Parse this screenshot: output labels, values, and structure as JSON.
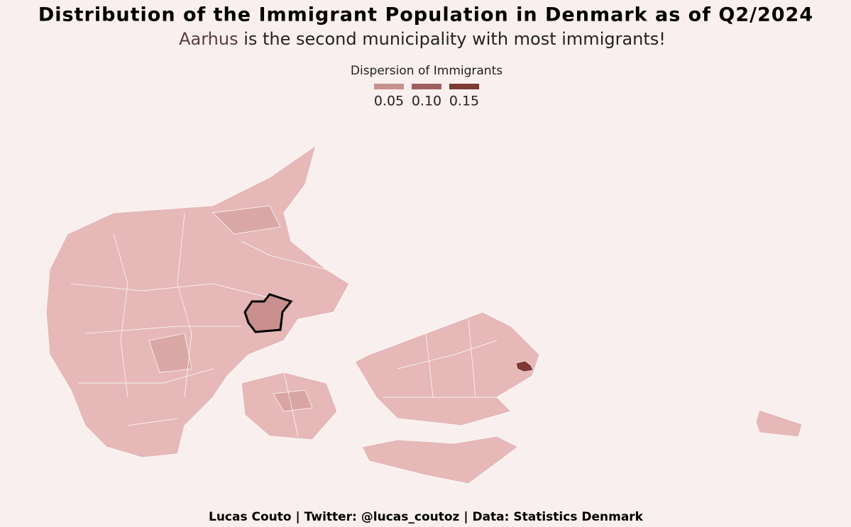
{
  "header": {
    "title": "Distribution of the Immigrant Population in Denmark as of Q2/2024",
    "subtitle": {
      "highlight": "Aarhus",
      "rest": "is the second municipality  with most immigrants!"
    }
  },
  "legend": {
    "title": "Dispersion of Immigrants",
    "ticks": [
      0.05,
      {
        "value": 0.1,
        "label": "0.10"
      },
      0.15
    ],
    "colors": [
      "#c4918f",
      "#a0605f",
      "#7d3a35"
    ]
  },
  "caption": "Lucas Couto | Twitter: @lucas_coutoz | Data: Statistics Denmark"
}
